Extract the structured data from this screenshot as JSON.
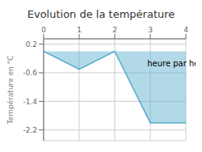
{
  "chart_data": {
    "type": "area",
    "title": "Evolution de la température",
    "ylabel": "Température en °C",
    "x": [
      0,
      1,
      2,
      3,
      3.7,
      4
    ],
    "values": [
      0.0,
      -0.5,
      0.0,
      -2.0,
      -2.0,
      -2.0
    ],
    "color": "#55aacc",
    "xlim": [
      0,
      4.0
    ],
    "xticks": [
      0,
      1,
      2,
      3,
      4
    ],
    "ylim": [
      -2.5,
      0.35
    ],
    "yticks": [
      0.2,
      -0.6,
      -1.4,
      -2.2
    ],
    "grid": true,
    "annotations": [
      {
        "text": "heure par heure",
        "x": 2.8,
        "y": -0.35
      }
    ]
  }
}
